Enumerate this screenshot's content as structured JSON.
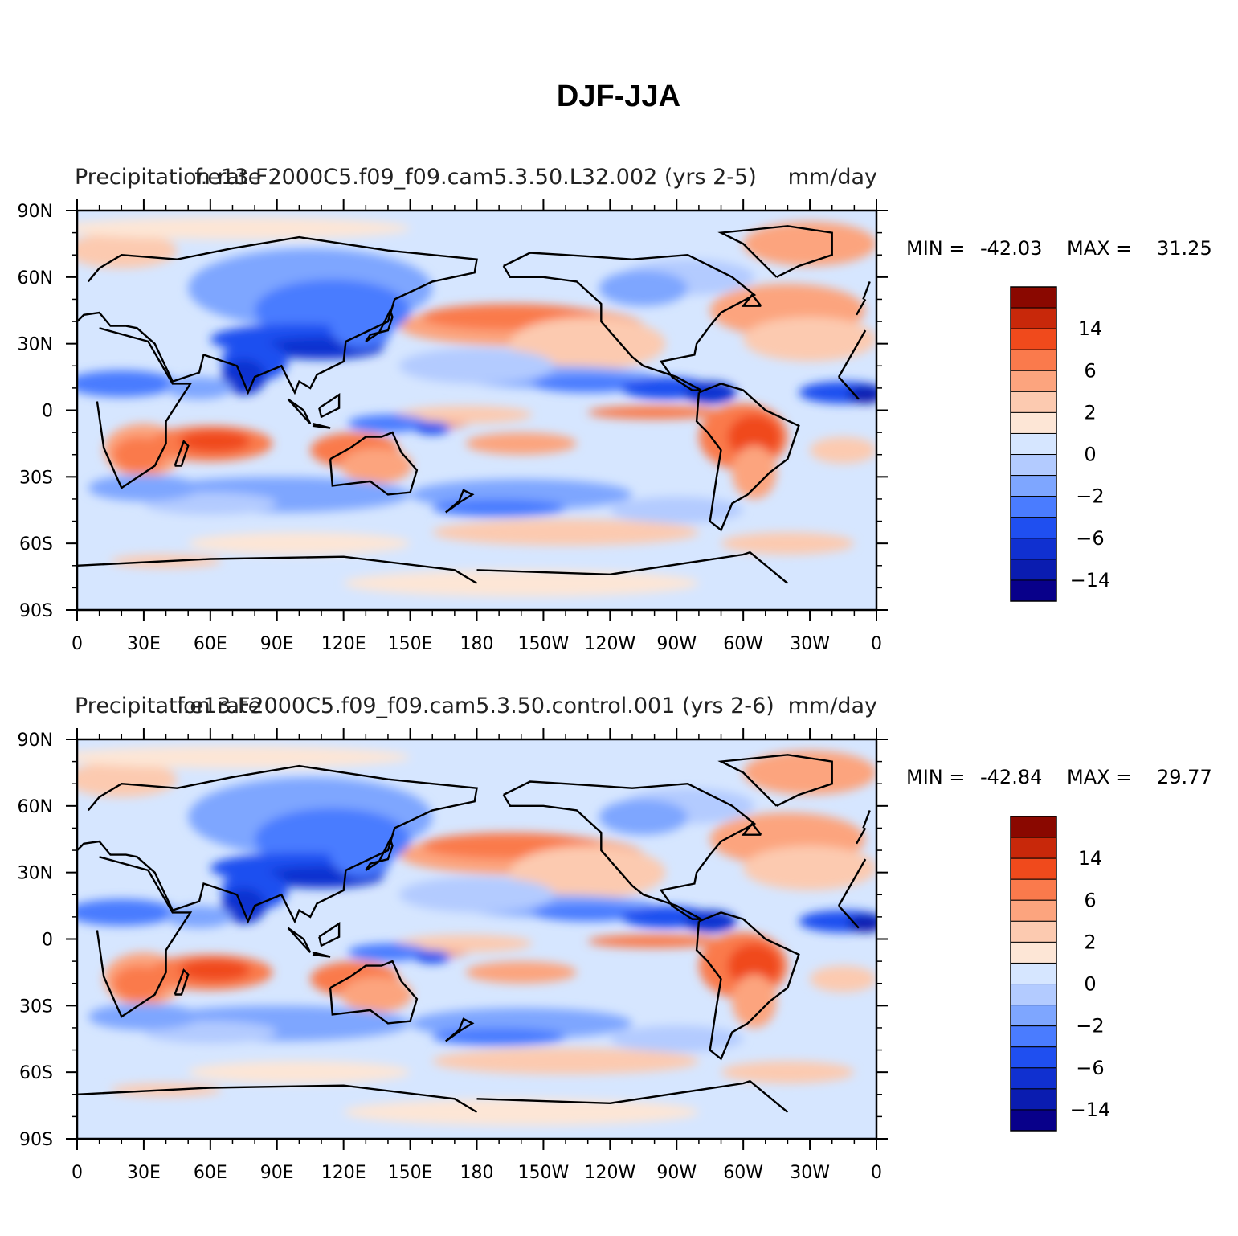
{
  "title": "DJF-JJA",
  "colors": [
    "#08008a",
    "#0a1cb0",
    "#1030d0",
    "#1f4ff0",
    "#4a7cff",
    "#7ea6ff",
    "#b3cbff",
    "#d6e6ff",
    "#fde6d6",
    "#fccab0",
    "#fca47e",
    "#fa7a4c",
    "#f04a1c",
    "#c8280a",
    "#8a0800"
  ],
  "coast_color": "#000000",
  "chart_data": [
    {
      "type": "heatmap",
      "left_label": "Precipitation rate",
      "center_label": "f.e13.F2000C5.f09_f09.cam5.3.50.L32.002 (yrs 2-5)",
      "right_label": "mm/day",
      "stats": {
        "min_label": "MIN =",
        "min": "-42.03",
        "max_label": "MAX =",
        "max": "31.25"
      },
      "colorbar_labels": [
        "14",
        "6",
        "2",
        "0",
        "-2",
        "-6",
        "-14"
      ],
      "y_ticks": [
        "90N",
        "60N",
        "30N",
        "0",
        "30S",
        "60S",
        "90S"
      ],
      "x_ticks": [
        "0",
        "30E",
        "60E",
        "90E",
        "120E",
        "150E",
        "180",
        "150W",
        "120W",
        "90W",
        "60W",
        "30W",
        "0"
      ],
      "xlim": [
        0,
        360
      ],
      "ylim": [
        -90,
        90
      ]
    },
    {
      "type": "heatmap",
      "left_label": "Precipitation rate",
      "center_label": "f.e13.F2000C5.f09_f09.cam5.3.50.control.001 (yrs 2-6)",
      "right_label": "mm/day",
      "stats": {
        "min_label": "MIN =",
        "min": "-42.84",
        "max_label": "MAX =",
        "max": "29.77"
      },
      "colorbar_labels": [
        "14",
        "6",
        "2",
        "0",
        "-2",
        "-6",
        "-14"
      ],
      "y_ticks": [
        "90N",
        "60N",
        "30N",
        "0",
        "30S",
        "60S",
        "90S"
      ],
      "x_ticks": [
        "0",
        "30E",
        "60E",
        "90E",
        "120E",
        "150E",
        "180",
        "150W",
        "120W",
        "90W",
        "60W",
        "30W",
        "0"
      ],
      "xlim": [
        0,
        360
      ],
      "ylim": [
        -90,
        90
      ]
    }
  ]
}
